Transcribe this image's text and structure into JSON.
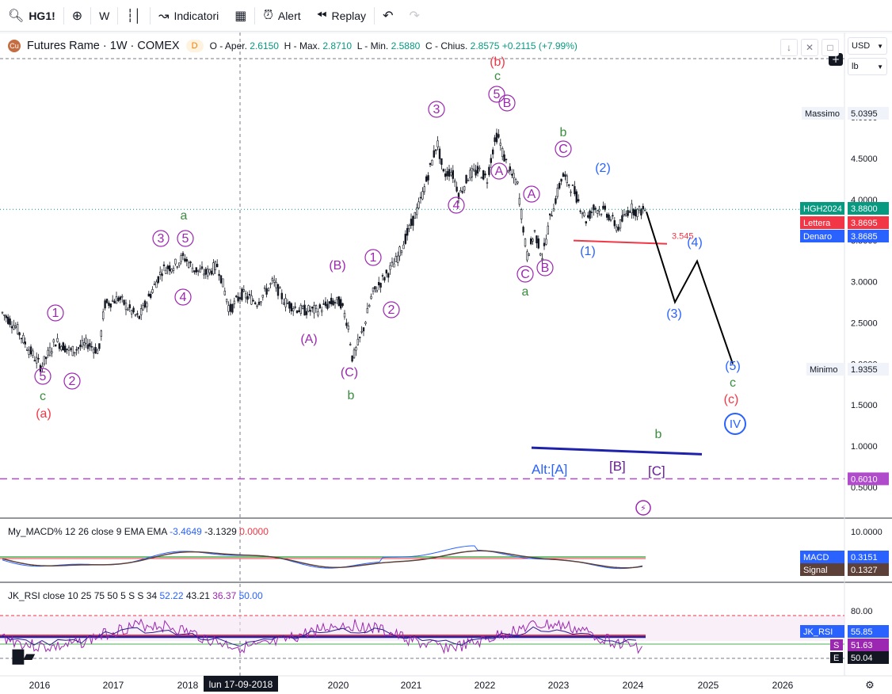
{
  "toolbar": {
    "symbol": "HG1!",
    "interval": "W",
    "indicators": "Indicatori",
    "alert": "Alert",
    "replay": "Replay"
  },
  "legend": {
    "title": "Futures Rame · 1W · COMEX",
    "badge": "D",
    "open_label": "O - Aper.",
    "open": "2.6150",
    "high_label": "H - Max.",
    "high": "2.8710",
    "low_label": "L - Min.",
    "low": "2.5880",
    "close_label": "C - Chius.",
    "close": "2.8575",
    "change": "+0.2115 (+7.99%)"
  },
  "right_panel": {
    "currency": "USD",
    "unit": "lb"
  },
  "price_axis": {
    "ticks": [
      "5.0000",
      "4.5000",
      "4.0000",
      "3.5000",
      "3.0000",
      "2.5000",
      "2.0000",
      "1.5000",
      "1.0000",
      "0.5000"
    ],
    "massimo_label": "Massimo",
    "massimo": "5.0395",
    "minimo_label": "Minimo",
    "minimo": "1.9355",
    "symbol_label": "HGH2024",
    "symbol_price": "3.8800",
    "ask_label": "Lettera",
    "ask": "3.8695",
    "bid_label": "Denaro",
    "bid": "3.8685",
    "dashed_level": "0.6010"
  },
  "time_axis": {
    "labels": [
      "2016",
      "2017",
      "2018",
      "2020",
      "2021",
      "2022",
      "2023",
      "2024",
      "2025",
      "2026"
    ],
    "crosshair_date": "lun 17-09-2018"
  },
  "macd": {
    "legend_name": "My_MACD% 12 26 close 9 EMA EMA",
    "v1": "-3.4649",
    "v2": "-3.1329",
    "v3": "0.0000",
    "axis_top": "10.0000",
    "macd_label": "MACD",
    "macd_value": "0.3151",
    "signal_label": "Signal",
    "signal_value": "0.1327"
  },
  "rsi": {
    "legend_name": "JK_RSI close 10 25 75 50 5 S S 34",
    "v1": "52.22",
    "v2": "43.21",
    "v3": "36.37",
    "v4": "50.00",
    "axis_top": "80.00",
    "rsi_label": "JK_RSI",
    "rsi_value": "55.85",
    "s_label": "S",
    "s_value": "51.63",
    "e_label": "E",
    "e_value": "50.04"
  },
  "annotations": {
    "level_text": "3.545",
    "alt_label": "Alt:[A]",
    "alt_b": "[B]",
    "alt_c": "[C]",
    "waves": [
      {
        "t": "5",
        "c": "#9c27b0",
        "ring": true
      },
      {
        "t": "c",
        "c": "#388e3c",
        "ring": false
      },
      {
        "t": "(a)",
        "c": "#f23645",
        "ring": false
      },
      {
        "t": "2",
        "c": "#9c27b0",
        "ring": true
      },
      {
        "t": "1",
        "c": "#9c27b0",
        "ring": true
      },
      {
        "t": "3",
        "c": "#9c27b0",
        "ring": true
      },
      {
        "t": "5",
        "c": "#9c27b0",
        "ring": true
      },
      {
        "t": "a",
        "c": "#388e3c",
        "ring": false
      },
      {
        "t": "4",
        "c": "#9c27b0",
        "ring": true
      },
      {
        "t": "(A)",
        "c": "#9c27b0",
        "ring": false
      },
      {
        "t": "(B)",
        "c": "#9c27b0",
        "ring": false
      },
      {
        "t": "(C)",
        "c": "#9c27b0",
        "ring": false
      },
      {
        "t": "b",
        "c": "#388e3c",
        "ring": false
      },
      {
        "t": "1",
        "c": "#9c27b0",
        "ring": true
      },
      {
        "t": "2",
        "c": "#9c27b0",
        "ring": true
      },
      {
        "t": "3",
        "c": "#9c27b0",
        "ring": true
      },
      {
        "t": "4",
        "c": "#9c27b0",
        "ring": true
      },
      {
        "t": "(b)",
        "c": "#f23645",
        "ring": false
      },
      {
        "t": "c",
        "c": "#388e3c",
        "ring": false
      },
      {
        "t": "5",
        "c": "#9c27b0",
        "ring": true
      },
      {
        "t": "B",
        "c": "#9c27b0",
        "ring": true
      },
      {
        "t": "A",
        "c": "#9c27b0",
        "ring": true
      },
      {
        "t": "A",
        "c": "#9c27b0",
        "ring": true
      },
      {
        "t": "C",
        "c": "#9c27b0",
        "ring": true
      },
      {
        "t": "B",
        "c": "#9c27b0",
        "ring": true
      },
      {
        "t": "a",
        "c": "#388e3c",
        "ring": false
      },
      {
        "t": "b",
        "c": "#388e3c",
        "ring": false
      },
      {
        "t": "C",
        "c": "#9c27b0",
        "ring": true
      },
      {
        "t": "(2)",
        "c": "#2962ff",
        "ring": false
      },
      {
        "t": "(1)",
        "c": "#2962ff",
        "ring": false
      },
      {
        "t": "(4)",
        "c": "#2962ff",
        "ring": false
      },
      {
        "t": "(3)",
        "c": "#2962ff",
        "ring": false
      },
      {
        "t": "(5)",
        "c": "#2962ff",
        "ring": false
      },
      {
        "t": "c",
        "c": "#388e3c",
        "ring": false
      },
      {
        "t": "(c)",
        "c": "#f23645",
        "ring": false
      },
      {
        "t": "IV",
        "c": "#2962ff",
        "ring": true
      },
      {
        "t": "b",
        "c": "#388e3c",
        "ring": false
      }
    ]
  },
  "colors": {
    "up": "#089981",
    "down": "#f23645",
    "candle": "#131722",
    "wave_purple": "#9c27b0",
    "wave_green": "#388e3c",
    "wave_red": "#f23645",
    "wave_blue": "#2962ff"
  }
}
